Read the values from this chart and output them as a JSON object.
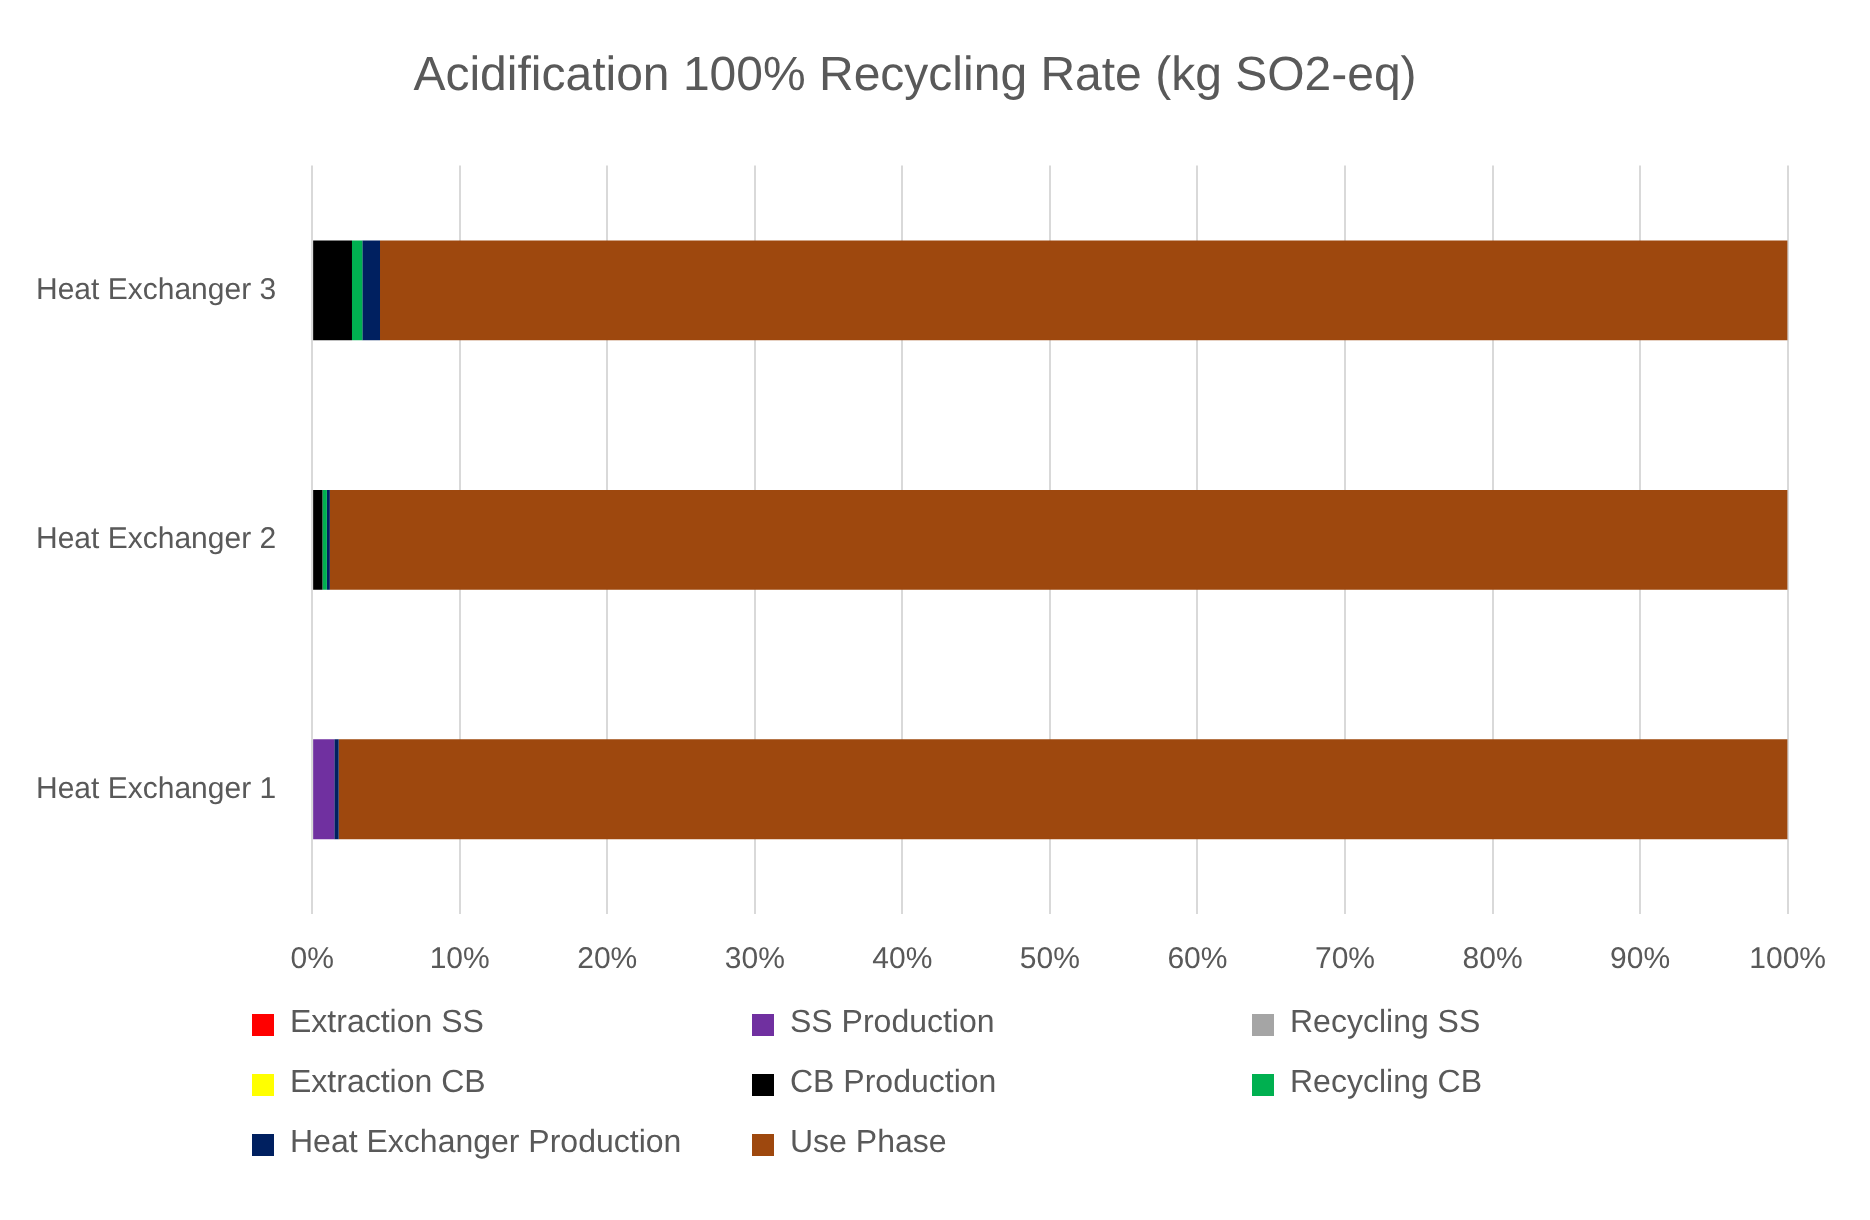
{
  "chart_data": {
    "type": "bar",
    "orientation": "horizontal",
    "stacked": true,
    "title": "Acidification 100% Recycling Rate (kg SO2-eq)",
    "categories": [
      "Heat Exchanger 3",
      "Heat Exchanger 2",
      "Heat Exchanger 1"
    ],
    "series": [
      {
        "name": "Extraction SS",
        "color": "#ff0000",
        "values": [
          0,
          0,
          0
        ]
      },
      {
        "name": "SS Production",
        "color": "#7030a0",
        "values": [
          0,
          0,
          1.5
        ]
      },
      {
        "name": "Recycling SS",
        "color": "#a5a5a5",
        "values": [
          0,
          0,
          0
        ]
      },
      {
        "name": "Extraction CB",
        "color": "#ffff00",
        "values": [
          0,
          0,
          0
        ]
      },
      {
        "name": "CB Production",
        "color": "#000000",
        "values": [
          2.7,
          0.7,
          0
        ]
      },
      {
        "name": "Recycling CB",
        "color": "#00b050",
        "values": [
          0.7,
          0.3,
          0
        ]
      },
      {
        "name": "Heat Exchanger Production",
        "color": "#002060",
        "values": [
          1.2,
          0.2,
          0.3
        ]
      },
      {
        "name": "Use Phase",
        "color": "#9e480e",
        "values": [
          95.4,
          98.8,
          98.2
        ]
      }
    ],
    "xlim": [
      0,
      100
    ],
    "xticks": [
      {
        "value": 0,
        "label": "0%"
      },
      {
        "value": 10,
        "label": "10%"
      },
      {
        "value": 20,
        "label": "20%"
      },
      {
        "value": 30,
        "label": "30%"
      },
      {
        "value": 40,
        "label": "40%"
      },
      {
        "value": 50,
        "label": "50%"
      },
      {
        "value": 60,
        "label": "60%"
      },
      {
        "value": 70,
        "label": "70%"
      },
      {
        "value": 80,
        "label": "80%"
      },
      {
        "value": 90,
        "label": "90%"
      },
      {
        "value": 100,
        "label": "100%"
      }
    ],
    "grid": "x",
    "legend": "bottom"
  }
}
